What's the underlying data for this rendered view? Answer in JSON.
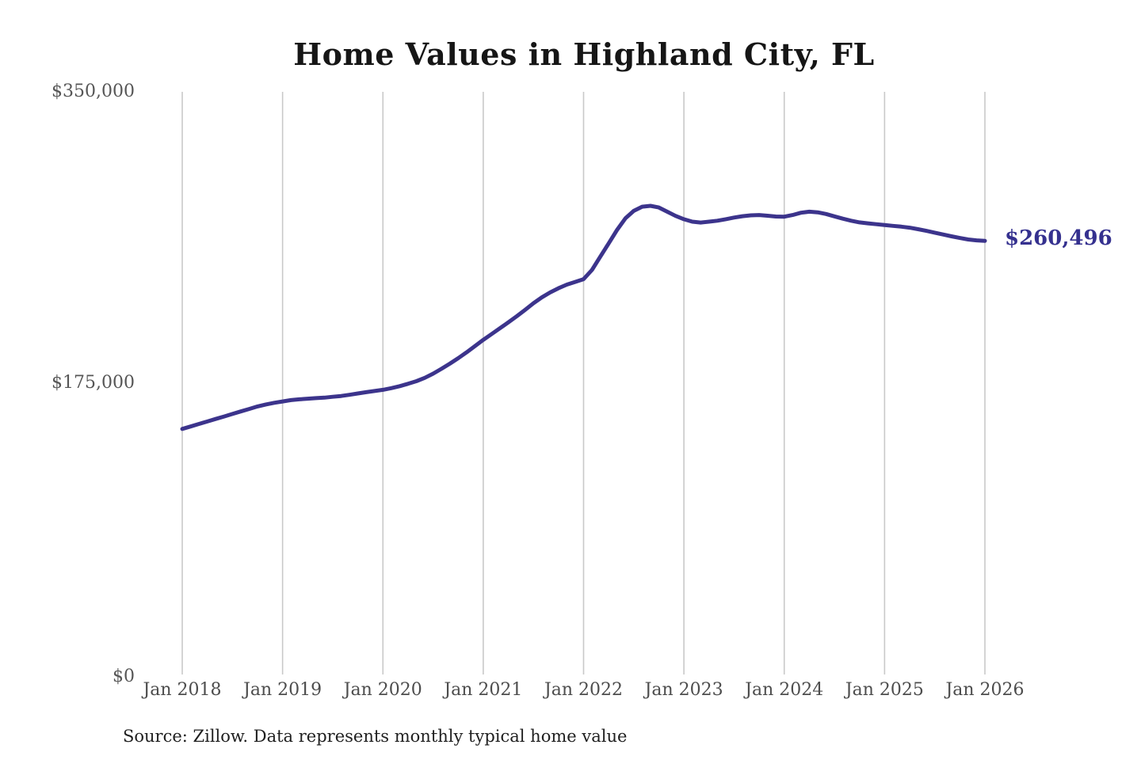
{
  "title": "Home Values in Highland City, FL",
  "source_note": "Source: Zillow. Data represents monthly typical home value",
  "colors": {
    "line": "#3c348c",
    "end_label": "#35318f",
    "grid": "#c9c9c9",
    "y_axis_text": "#565656",
    "x_axis_text": "#4d4d4d",
    "title_text": "#161616",
    "source_text": "#1f1f1f",
    "background": "#ffffff"
  },
  "chart_data": {
    "type": "line",
    "title": "Home Values in Highland City, FL",
    "xlabel": "",
    "ylabel": "",
    "ylim": [
      0,
      350000
    ],
    "y_ticks": [
      0,
      175000,
      350000
    ],
    "y_tick_labels": [
      "$0",
      "$175,000",
      "$350,000"
    ],
    "x_tick_labels": [
      "Jan 2018",
      "Jan 2019",
      "Jan 2020",
      "Jan 2021",
      "Jan 2022",
      "Jan 2023",
      "Jan 2024",
      "Jan 2025",
      "Jan 2026"
    ],
    "grid": "vertical-only",
    "legend": "none",
    "final_value": 260496,
    "final_value_label": "$260,496",
    "series": [
      {
        "name": "Monthly typical home value",
        "x_start": "2018-01",
        "x_step_months": 1,
        "values": [
          147500,
          149000,
          150500,
          152000,
          153500,
          155000,
          156500,
          158000,
          159500,
          161000,
          162200,
          163200,
          164000,
          164800,
          165300,
          165700,
          166000,
          166300,
          166800,
          167300,
          168000,
          168800,
          169600,
          170300,
          171000,
          172000,
          173200,
          174600,
          176200,
          178200,
          180700,
          183600,
          186700,
          190000,
          193500,
          197200,
          201000,
          204500,
          208000,
          211500,
          215200,
          219000,
          223000,
          226500,
          229500,
          232000,
          234200,
          235800,
          237500,
          243000,
          251000,
          259000,
          267000,
          274000,
          278500,
          281000,
          281500,
          280500,
          278000,
          275500,
          273500,
          272000,
          271500,
          272000,
          272600,
          273500,
          274500,
          275300,
          275800,
          276000,
          275600,
          275100,
          275000,
          276000,
          277400,
          278000,
          277600,
          276600,
          275200,
          273800,
          272600,
          271600,
          271000,
          270500,
          270000,
          269500,
          269000,
          268400,
          267500,
          266500,
          265400,
          264300,
          263200,
          262200,
          261300,
          260800,
          260496
        ]
      }
    ]
  }
}
